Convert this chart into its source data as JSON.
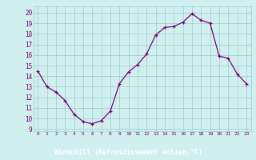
{
  "x": [
    0,
    1,
    2,
    3,
    4,
    5,
    6,
    7,
    8,
    9,
    10,
    11,
    12,
    13,
    14,
    15,
    16,
    17,
    18,
    19,
    20,
    21,
    22,
    23
  ],
  "y": [
    14.5,
    13.0,
    12.5,
    11.7,
    10.4,
    9.7,
    9.5,
    9.8,
    10.7,
    13.3,
    14.4,
    15.1,
    16.1,
    17.9,
    18.6,
    18.7,
    19.1,
    19.9,
    19.3,
    19.0,
    15.9,
    15.7,
    14.2,
    13.3
  ],
  "line_color": "#7b0070",
  "marker_color": "#7b0070",
  "bg_color": "#d0f0f0",
  "grid_color": "#a0c8cc",
  "xlabel": "Windchill (Refroidissement éolien,°C)",
  "ylabel_ticks": [
    9,
    10,
    11,
    12,
    13,
    14,
    15,
    16,
    17,
    18,
    19,
    20
  ],
  "ylim": [
    8.8,
    20.6
  ],
  "xlim": [
    -0.5,
    23.5
  ],
  "label_color": "#7b0070",
  "xlabel_bg": "#7b0070",
  "xlabel_text_color": "#ffffff"
}
